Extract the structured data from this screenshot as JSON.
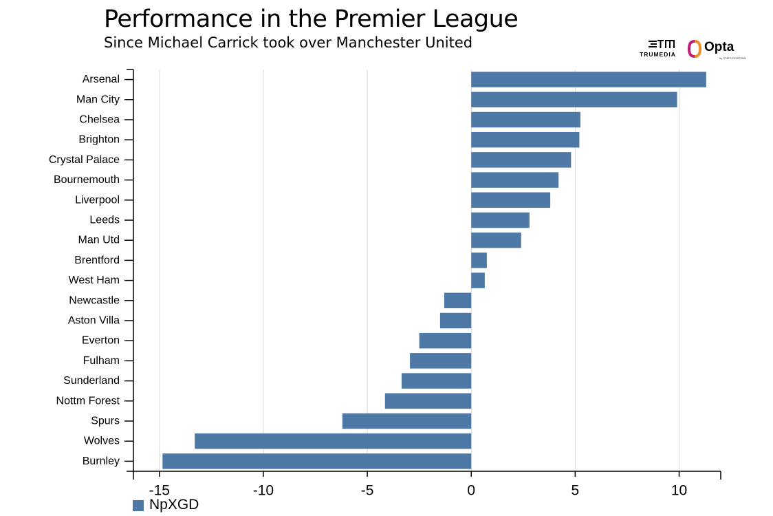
{
  "header": {
    "title": "Performance in the Premier League",
    "subtitle": "Since Michael Carrick took over Manchester United"
  },
  "logos": {
    "trumedia_label": "TRUMEDIA",
    "opta_label": "Opta",
    "opta_sub": "by STATS PERFORM"
  },
  "colors": {
    "bar": "#4e79a7",
    "grid": "#d9d9d9",
    "axis": "#000000",
    "opta_orange": "#f28c28",
    "opta_magenta": "#c2187a"
  },
  "chart_data": {
    "type": "bar",
    "orientation": "horizontal",
    "categories": [
      "Arsenal",
      "Man City",
      "Chelsea",
      "Brighton",
      "Crystal Palace",
      "Bournemouth",
      "Liverpool",
      "Leeds",
      "Man Utd",
      "Brentford",
      "West Ham",
      "Newcastle",
      "Aston Villa",
      "Everton",
      "Fulham",
      "Sunderland",
      "Nottm Forest",
      "Spurs",
      "Wolves",
      "Burnley"
    ],
    "series": [
      {
        "name": "NpXGD",
        "values": [
          11.3,
          9.9,
          5.25,
          5.2,
          4.8,
          4.2,
          3.8,
          2.8,
          2.4,
          0.75,
          0.65,
          -1.3,
          -1.5,
          -2.5,
          -2.95,
          -3.35,
          -4.15,
          -6.2,
          -13.3,
          -14.85
        ]
      }
    ],
    "xlim": [
      -16.25,
      12
    ],
    "xticks": [
      -15,
      -10,
      -5,
      0,
      5,
      10
    ],
    "xtick_labels": [
      "-15",
      "-10",
      "-5",
      "0",
      "5",
      "10"
    ],
    "grid": true,
    "legend": "bottom-left"
  }
}
